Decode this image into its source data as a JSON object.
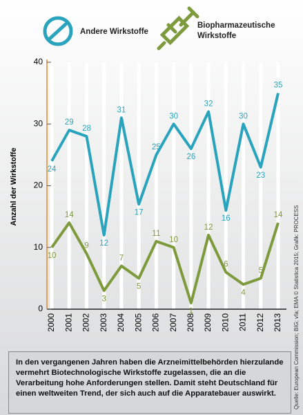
{
  "chart_data": {
    "type": "line",
    "legend_title_lines": null,
    "ylabel": "Anzahl der Wirkstoffe",
    "categories": [
      "2000",
      "2001",
      "2002",
      "2003",
      "2004",
      "2005",
      "2006",
      "2007",
      "2008",
      "2009",
      "2010",
      "2011",
      "2012",
      "2013"
    ],
    "series": [
      {
        "name": "Andere Wirkstoffe",
        "color": "#2aa3bd",
        "values": [
          24,
          29,
          28,
          12,
          31,
          17,
          25,
          30,
          26,
          32,
          16,
          30,
          23,
          35
        ]
      },
      {
        "name": "Biopharmazeutische Wirkstoffe",
        "color": "#7d9a3c",
        "values": [
          10,
          14,
          9,
          3,
          7,
          5,
          11,
          10,
          1,
          12,
          6,
          4,
          5,
          14
        ]
      }
    ],
    "ylim": [
      0,
      40
    ],
    "yticks": [
      0,
      10,
      20,
      30,
      40
    ],
    "grid": true,
    "note": "In den vergangenen Jahren haben die Arzneimittelbehörden hierzulande vermehrt Biotechnologische Wirkstoffe zugelassen, die an die Verarbeitung hohe Anforderungen stellen. Damit steht Deutschland für einen weltweiten Trend, der sich auch auf die Apparatebauer auswirkt.",
    "source": "Quelle: European Commission; BIG; vfa; EMA © Statistica 2015; Grafik: PROCESS"
  }
}
